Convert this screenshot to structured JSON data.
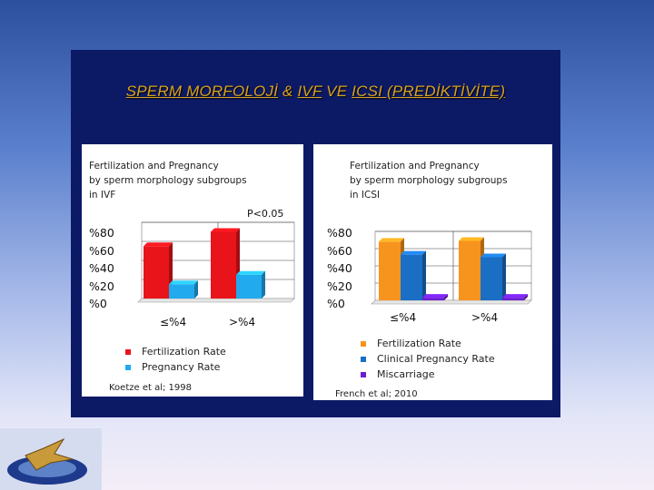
{
  "slide": {
    "title_parts": [
      "SPERM MORFOLOJİ",
      " & ",
      "IVF",
      " VE ",
      "ICSI  (PREDİKTİVİTE)"
    ]
  },
  "y_axis_labels": [
    "%80",
    "%60",
    "%40",
    "%20",
    "%0"
  ],
  "chart_data": [
    {
      "type": "bar",
      "title": "Fertilization and Pregnancy\nby sperm morphology subgroups\nin IVF",
      "annotation": "P<0.05",
      "categories": [
        "≤%4",
        ">%4"
      ],
      "ylim": [
        0,
        80
      ],
      "series": [
        {
          "name": "Fertilization Rate",
          "color": "#e8141a",
          "values": [
            55,
            70
          ]
        },
        {
          "name": "Pregnancy Rate",
          "color": "#22aaee",
          "values": [
            15,
            25
          ]
        }
      ],
      "source": "Koetze et al; 1998"
    },
    {
      "type": "bar",
      "title": "Fertilization and Pregnancy\nby sperm morphology subgroups\nin ICSI",
      "categories": [
        "≤%4",
        ">%4"
      ],
      "ylim": [
        0,
        80
      ],
      "series": [
        {
          "name": "Fertilization Rate",
          "color": "#f7941d",
          "values": [
            68,
            69
          ]
        },
        {
          "name": "Clinical Pregnancy Rate",
          "color": "#1a6fc4",
          "values": [
            53,
            50
          ]
        },
        {
          "name": "Miscarriage",
          "color": "#6a1fd1",
          "values": [
            3,
            3
          ]
        }
      ],
      "source": "French et al; 2010"
    }
  ]
}
